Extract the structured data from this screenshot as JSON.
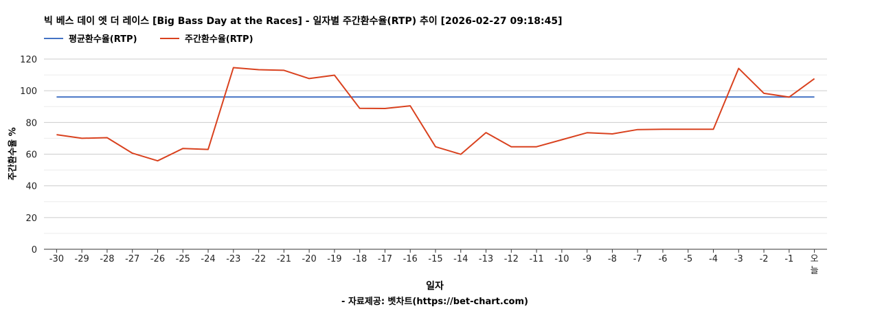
{
  "chart_data": {
    "type": "line",
    "title": "빅 베스 데이 엣 더 레이스 [Big Bass Day at the Races] - 일자별 주간환수율(RTP) 추이 [2026-02-27 09:18:45]",
    "xlabel": "일자",
    "ylabel": "주간환수율 %",
    "note": "- 자료제공: 벳차트(https://bet-chart.com)",
    "categories": [
      "-30",
      "-29",
      "-28",
      "-27",
      "-26",
      "-25",
      "-24",
      "-23",
      "-22",
      "-21",
      "-20",
      "-19",
      "-18",
      "-17",
      "-16",
      "-15",
      "-14",
      "-13",
      "-12",
      "-11",
      "-10",
      "-9",
      "-8",
      "-7",
      "-6",
      "-5",
      "-4",
      "-3",
      "-2",
      "-1",
      "오늘"
    ],
    "ylim": [
      0,
      120
    ],
    "yticks": [
      0,
      20,
      40,
      60,
      80,
      100,
      120
    ],
    "grid": true,
    "legend_position": "top-left",
    "series": [
      {
        "name": "평균환수율(RTP)",
        "color": "#4472C4",
        "values": [
          96.08,
          96.08,
          96.08,
          96.08,
          96.08,
          96.08,
          96.08,
          96.08,
          96.08,
          96.08,
          96.08,
          96.08,
          96.08,
          96.08,
          96.08,
          96.08,
          96.08,
          96.08,
          96.08,
          96.08,
          96.08,
          96.08,
          96.08,
          96.08,
          96.08,
          96.08,
          96.08,
          96.08,
          96.08,
          96.08,
          96.08
        ]
      },
      {
        "name": "주간환수율(RTP)",
        "color": "#D9411E",
        "values": [
          72.3,
          70.0,
          70.4,
          60.6,
          55.8,
          63.6,
          63.0,
          114.6,
          113.3,
          112.9,
          107.7,
          109.8,
          88.9,
          88.8,
          90.5,
          64.7,
          59.9,
          73.6,
          64.7,
          64.7,
          69.1,
          73.5,
          72.8,
          75.5,
          75.7,
          75.7,
          75.7,
          114.1,
          98.4,
          96.0,
          107.6
        ]
      }
    ]
  }
}
